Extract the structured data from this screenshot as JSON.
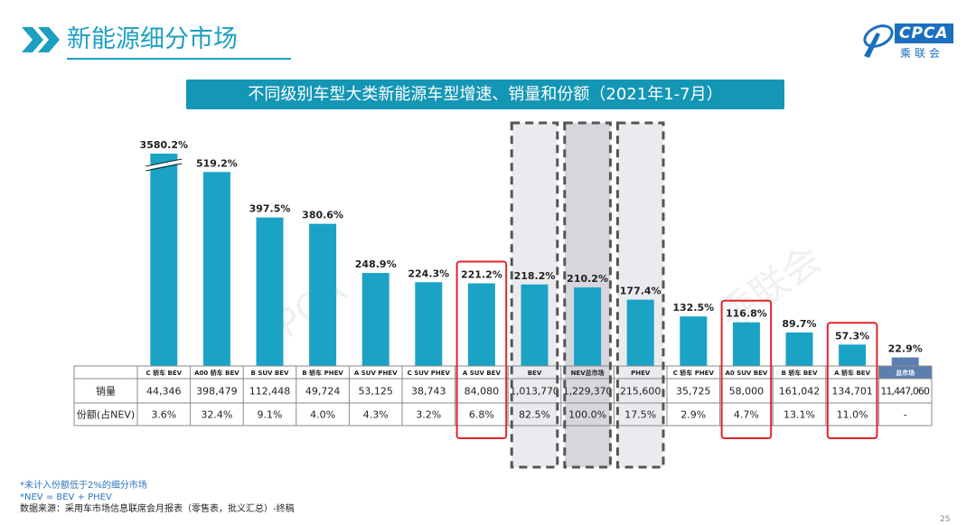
{
  "page": {
    "title": "新能源细分市场",
    "banner": "不同级别车型大类新能源车型增速、销量和份额（2021年1-7月）",
    "logo_text": "CPCA",
    "logo_subtext": "乘联会",
    "page_number": "25",
    "notes": [
      "*未计入份额低于2%的细分市场",
      "*NEV = BEV + PHEV",
      "数据来源：采用车市场信息联席会月报表（零售表，批义汇总）-终稿"
    ]
  },
  "colors": {
    "bar": "#1ba3c6",
    "total_bar": "#5b7fb0",
    "banner": "#1496b5",
    "highlight": "#e0252b",
    "dashed_box": "#555555",
    "grey_fill": "#ebebef",
    "dark_fill": "#d6d6dc"
  },
  "chart_data": {
    "type": "bar",
    "title": "不同级别车型大类新能源车型增速、销量和份额（2021年1-7月）",
    "categories": [
      "C 轿车 BEV",
      "A00 轿车 BEV",
      "B SUV BEV",
      "B 轿车 PHEV",
      "A SUV PHEV",
      "C SUV PHEV",
      "A SUV BEV",
      "BEV",
      "NEV总市场",
      "PHEV",
      "C 轿车 PHEV",
      "A0 SUV BEV",
      "B 轿车 BEV",
      "A 轿车 BEV",
      "总市场"
    ],
    "series": [
      {
        "values": [
          3580.2,
          519.2,
          397.5,
          380.6,
          248.9,
          224.3,
          221.2,
          218.2,
          210.2,
          177.4,
          132.5,
          116.8,
          89.7,
          57.3,
          22.9
        ],
        "labels": [
          "3580.2%",
          "519.2%",
          "397.5%",
          "380.6%",
          "248.9%",
          "224.3%",
          "221.2%",
          "218.2%",
          "210.2%",
          "177.4%",
          "132.5%",
          "116.8%",
          "89.7%",
          "57.3%",
          "22.9%"
        ]
      }
    ],
    "axis_break": {
      "category": "C 轿车 BEV"
    },
    "table": {
      "row_labels": [
        "销量",
        "份额(占NEV)"
      ],
      "sales": [
        "44,346",
        "398,479",
        "112,448",
        "49,724",
        "53,125",
        "38,743",
        "84,080",
        "1,013,770",
        "1,229,370",
        "215,600",
        "35,725",
        "58,000",
        "161,042",
        "134,701",
        "11,447,060"
      ],
      "share": [
        "3.6%",
        "32.4%",
        "9.1%",
        "4.0%",
        "4.3%",
        "3.2%",
        "6.8%",
        "82.5%",
        "100.0%",
        "17.5%",
        "2.9%",
        "4.7%",
        "13.1%",
        "11.0%",
        "-"
      ]
    },
    "highlighted_red": [
      "A SUV BEV",
      "A0 SUV BEV",
      "A 轿车 BEV"
    ],
    "dashed_boxes": [
      "BEV",
      "NEV总市场",
      "PHEV"
    ],
    "dark_category": "总市场",
    "ylim": [
      0,
      520
    ]
  }
}
